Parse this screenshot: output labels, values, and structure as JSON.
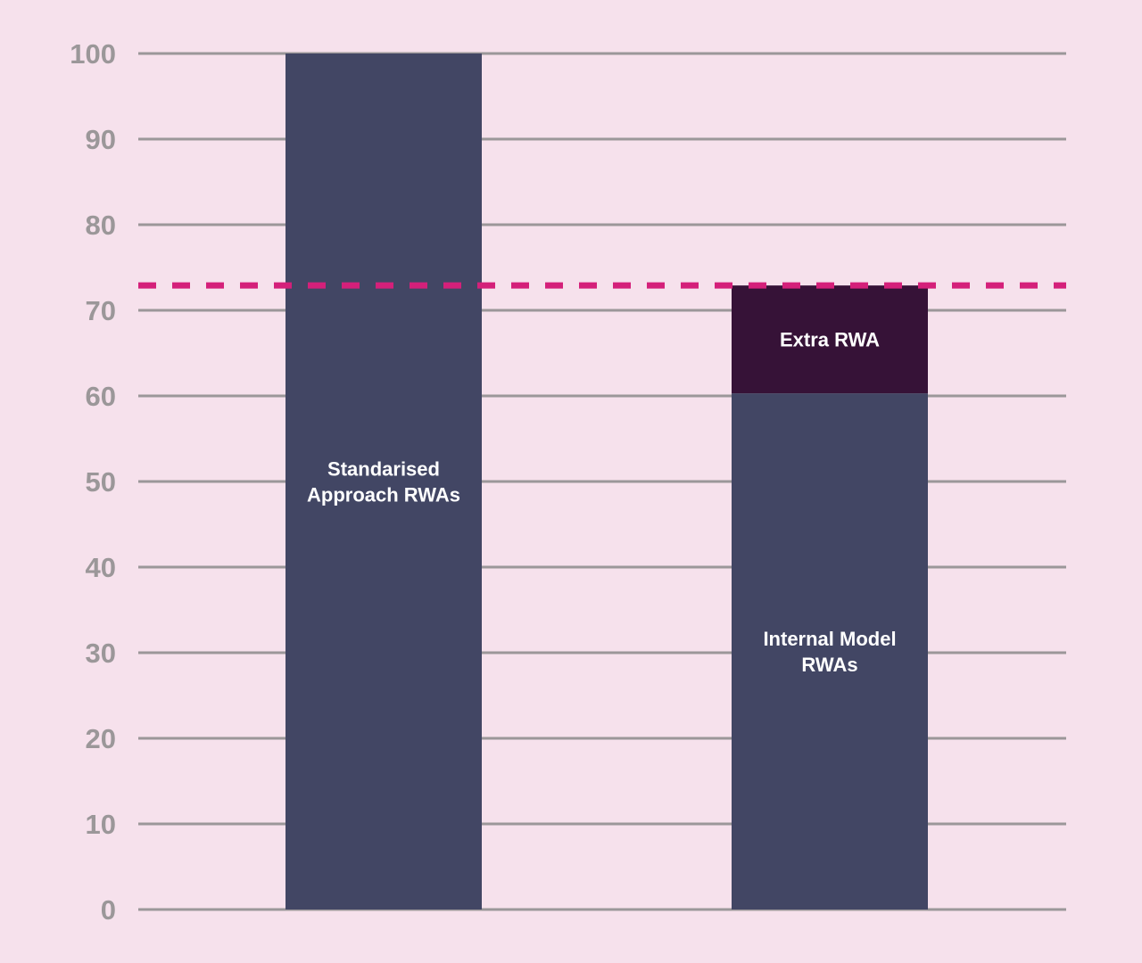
{
  "chart_data": {
    "type": "bar",
    "stacked": true,
    "title": "",
    "xlabel": "",
    "ylabel": "",
    "ylim": [
      0,
      100
    ],
    "yticks": [
      0,
      10,
      20,
      30,
      40,
      50,
      60,
      70,
      80,
      90,
      100
    ],
    "grid": true,
    "bars": [
      {
        "segments": [
          {
            "value": 100,
            "label_lines": [
              "Standarised",
              "Approach RWAs"
            ],
            "color": "#424664"
          }
        ]
      },
      {
        "segments": [
          {
            "value": 60.3,
            "label_lines": [
              "Internal Model",
              "RWAs"
            ],
            "color": "#424664"
          },
          {
            "value": 12.6,
            "label_lines": [
              "Extra RWA"
            ],
            "color": "#361237"
          }
        ]
      }
    ],
    "reference_line": {
      "value": 72.9,
      "style": "dashed",
      "color": "#D4207A"
    },
    "colors": {
      "background": "#F6E1EC",
      "grid": "#9B9799",
      "tick_text": "#9B9799",
      "bar_text": "#FFFFFF"
    }
  }
}
